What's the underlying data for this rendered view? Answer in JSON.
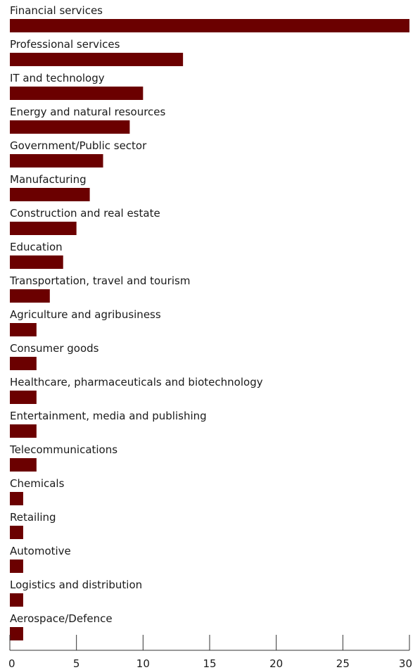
{
  "chart_data": {
    "type": "bar",
    "orientation": "horizontal",
    "categories": [
      "Financial services",
      "Professional services",
      "IT and technology",
      "Energy and natural resources",
      "Government/Public sector",
      "Manufacturing",
      "Construction and real estate",
      "Education",
      "Transportation, travel and tourism",
      "Agriculture and agribusiness",
      "Consumer goods",
      "Healthcare, pharmaceuticals and biotechnology",
      "Entertainment, media and publishing",
      "Telecommunications",
      "Chemicals",
      "Retailing",
      "Automotive",
      "Logistics and distribution",
      "Aerospace/Defence"
    ],
    "values": [
      30,
      13,
      10,
      9,
      7,
      6,
      5,
      4,
      3,
      2,
      2,
      2,
      2,
      2,
      1,
      1,
      1,
      1,
      1
    ],
    "xlim": [
      0,
      30
    ],
    "xticks": [
      0,
      5,
      10,
      15,
      20,
      25,
      30
    ],
    "bar_color": "#6b0000",
    "grid": false,
    "title": "",
    "xlabel": "",
    "ylabel": ""
  }
}
